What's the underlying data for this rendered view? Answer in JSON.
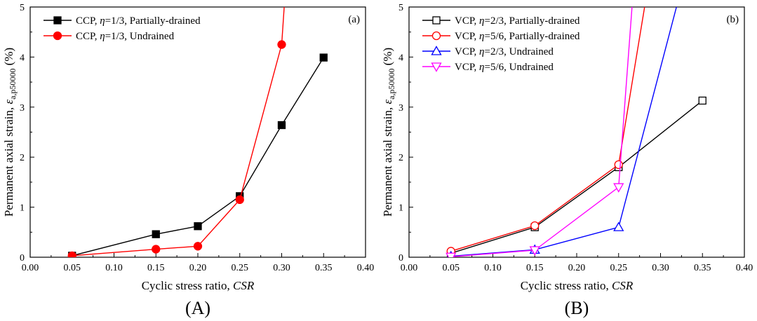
{
  "chart_data": [
    {
      "type": "line",
      "panel_tag": "(a)",
      "caption": "(A)",
      "xlabel_text": "Cyclic stress ratio, ",
      "xlabel_italic": "CSR",
      "ylabel": {
        "pre": "Permanent axial strain, ",
        "symbol": "ε",
        "subscript": "a,p50000",
        "post": " (%)"
      },
      "xlim": [
        0.0,
        0.4
      ],
      "ylim": [
        0,
        5
      ],
      "xticks": [
        "0.00",
        "0.05",
        "0.10",
        "0.15",
        "0.20",
        "0.25",
        "0.30",
        "0.35",
        "0.40"
      ],
      "yticks": [
        "0",
        "1",
        "2",
        "3",
        "4",
        "5"
      ],
      "legend_position": "top-left",
      "series": [
        {
          "name": "CCP, η=1/3, Partially-drained",
          "legend": {
            "prefix": "CCP, ",
            "eta": "η",
            "suffix": "=1/3, Partially-drained"
          },
          "color": "#000000",
          "marker": "square",
          "filled": true,
          "x": [
            0.05,
            0.15,
            0.2,
            0.25,
            0.3,
            0.35
          ],
          "y": [
            0.03,
            0.46,
            0.62,
            1.22,
            2.64,
            3.99
          ],
          "extension": null
        },
        {
          "name": "CCP, η=1/3, Undrained",
          "legend": {
            "prefix": "CCP, ",
            "eta": "η",
            "suffix": "=1/3, Undrained"
          },
          "color": "#ff0000",
          "marker": "circle",
          "filled": true,
          "x": [
            0.05,
            0.15,
            0.2,
            0.25,
            0.3
          ],
          "y": [
            0.03,
            0.16,
            0.22,
            1.15,
            4.25
          ],
          "extension": [
            0.303,
            5.0
          ]
        }
      ]
    },
    {
      "type": "line",
      "panel_tag": "(b)",
      "caption": "(B)",
      "xlabel_text": "Cyclic stress ratio, ",
      "xlabel_italic": "CSR",
      "ylabel": {
        "pre": "Permanent axial strain, ",
        "symbol": "ε",
        "subscript": "a,p50000",
        "post": " (%)"
      },
      "xlim": [
        0.0,
        0.4
      ],
      "ylim": [
        0,
        5
      ],
      "xticks": [
        "0.00",
        "0.05",
        "0.10",
        "0.15",
        "0.20",
        "0.25",
        "0.30",
        "0.35",
        "0.40"
      ],
      "yticks": [
        "0",
        "1",
        "2",
        "3",
        "4",
        "5"
      ],
      "legend_position": "top-left",
      "series": [
        {
          "name": "VCP, η=2/3, Partially-drained",
          "legend": {
            "prefix": "VCP, ",
            "eta": "η",
            "suffix": "=2/3, Partially-drained"
          },
          "color": "#000000",
          "marker": "square",
          "filled": false,
          "x": [
            0.05,
            0.15,
            0.25,
            0.35
          ],
          "y": [
            0.08,
            0.6,
            1.8,
            3.13
          ],
          "extension": null
        },
        {
          "name": "VCP, η=5/6, Partially-drained",
          "legend": {
            "prefix": "VCP, ",
            "eta": "η",
            "suffix": "=5/6, Partially-drained"
          },
          "color": "#ff0000",
          "marker": "circle",
          "filled": false,
          "x": [
            0.05,
            0.15,
            0.25
          ],
          "y": [
            0.12,
            0.63,
            1.85
          ],
          "extension": [
            0.281,
            5.0
          ]
        },
        {
          "name": "VCP, η=2/3, Undrained",
          "legend": {
            "prefix": "VCP, ",
            "eta": "η",
            "suffix": "=2/3, Undrained"
          },
          "color": "#0000ff",
          "marker": "triangle-up",
          "filled": false,
          "x": [
            0.05,
            0.15,
            0.25
          ],
          "y": [
            0.02,
            0.15,
            0.6
          ],
          "extension": [
            0.319,
            5.0
          ]
        },
        {
          "name": "VCP, η=5/6, Undrained",
          "legend": {
            "prefix": "VCP, ",
            "eta": "η",
            "suffix": "=5/6, Undrained"
          },
          "color": "#ff00ff",
          "marker": "triangle-down",
          "filled": false,
          "x": [
            0.05,
            0.15,
            0.25
          ],
          "y": [
            0.01,
            0.14,
            1.4
          ],
          "extension": [
            0.266,
            5.0
          ]
        }
      ]
    }
  ]
}
